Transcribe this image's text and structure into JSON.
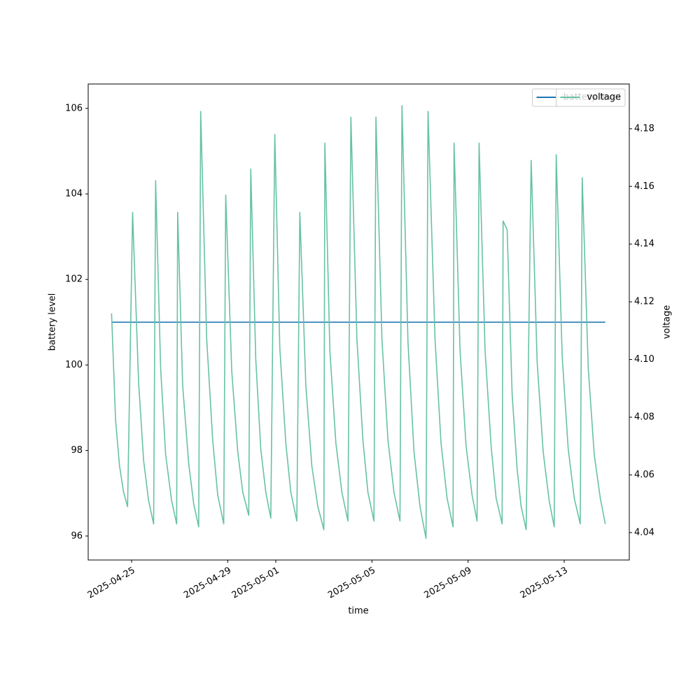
{
  "chart_data": {
    "type": "line",
    "x_label": "time",
    "y_label": "battery level",
    "y2_label": "voltage",
    "xlim": [
      "2025-04-23 04:40",
      "2025-05-15 17:00"
    ],
    "xticks": [
      "2025-04-25",
      "2025-04-29",
      "2025-05-01",
      "2025-05-05",
      "2025-05-09",
      "2025-05-13"
    ],
    "ylim": [
      95.44,
      106.57
    ],
    "yticks": [
      96,
      98,
      100,
      102,
      104,
      106
    ],
    "y2lim": [
      4.0305,
      4.1955
    ],
    "y2ticks": [
      4.04,
      4.06,
      4.08,
      {
        "value": 4.1,
        "label": "4.10"
      },
      4.12,
      4.14,
      4.16,
      4.18
    ],
    "legend": "upper right",
    "series": [
      {
        "name": "battery level",
        "color": "#1f77b4",
        "axis": "y",
        "x": [
          "2025-04-24 04:00",
          "2025-05-14 17:00"
        ],
        "values": [
          101,
          101
        ]
      },
      {
        "name": "voltage",
        "color": "#66c2a5",
        "axis": "y2",
        "x": [
          "2025-04-24 04:00",
          "2025-04-24 08:00",
          "2025-04-24 12:00",
          "2025-04-24 16:00",
          "2025-04-24 20:00",
          "2025-04-25 01:00",
          "2025-04-25 07:00",
          "2025-04-25 12:00",
          "2025-04-25 17:00",
          "2025-04-25 22:00",
          "2025-04-26 00:00",
          "2025-04-26 05:00",
          "2025-04-26 10:00",
          "2025-04-26 16:00",
          "2025-04-26 21:00",
          "2025-04-26 22:00",
          "2025-04-27 03:00",
          "2025-04-27 09:00",
          "2025-04-27 14:00",
          "2025-04-27 19:00",
          "2025-04-27 21:00",
          "2025-04-28 03:00",
          "2025-04-28 09:00",
          "2025-04-28 14:00",
          "2025-04-28 20:00",
          "2025-04-28 22:00",
          "2025-04-29 04:00",
          "2025-04-29 10:00",
          "2025-04-29 15:00",
          "2025-04-29 21:00",
          "2025-04-29 23:00",
          "2025-04-30 04:00",
          "2025-04-30 09:00",
          "2025-04-30 14:00",
          "2025-04-30 19:00",
          "2025-04-30 23:00",
          "2025-05-01 04:00",
          "2025-05-01 10:00",
          "2025-05-01 15:00",
          "2025-05-01 21:00",
          "2025-05-02 00:00",
          "2025-05-02 06:00",
          "2025-05-02 12:00",
          "2025-05-02 18:00",
          "2025-05-03 00:00",
          "2025-05-03 01:00",
          "2025-05-03 06:00",
          "2025-05-03 12:00",
          "2025-05-03 18:00",
          "2025-05-04 00:00",
          "2025-05-04 03:00",
          "2025-05-04 09:00",
          "2025-05-04 15:00",
          "2025-05-04 20:00",
          "2025-05-05 02:00",
          "2025-05-05 04:00",
          "2025-05-05 10:00",
          "2025-05-05 16:00",
          "2025-05-05 22:00",
          "2025-05-06 04:00",
          "2025-05-06 06:00",
          "2025-05-06 12:00",
          "2025-05-06 18:00",
          "2025-05-07 00:00",
          "2025-05-07 06:00",
          "2025-05-07 08:00",
          "2025-05-07 15:00",
          "2025-05-07 21:00",
          "2025-05-08 03:00",
          "2025-05-08 09:00",
          "2025-05-08 10:00",
          "2025-05-08 16:00",
          "2025-05-08 22:00",
          "2025-05-09 04:00",
          "2025-05-09 09:00",
          "2025-05-09 11:00",
          "2025-05-09 17:00",
          "2025-05-09 23:00",
          "2025-05-10 04:00",
          "2025-05-10 10:00",
          "2025-05-10 11:00",
          "2025-05-10 15:00",
          "2025-05-10 20:00",
          "2025-05-11 01:00",
          "2025-05-11 05:00",
          "2025-05-11 10:00",
          "2025-05-11 15:00",
          "2025-05-11 21:00",
          "2025-05-12 03:00",
          "2025-05-12 09:00",
          "2025-05-12 14:00",
          "2025-05-12 16:00",
          "2025-05-12 22:00",
          "2025-05-13 04:00",
          "2025-05-13 10:00",
          "2025-05-13 16:00",
          "2025-05-13 18:00",
          "2025-05-14 00:00",
          "2025-05-14 06:00",
          "2025-05-14 12:00",
          "2025-05-14 17:00"
        ],
        "values": [
          4.116,
          4.079,
          4.063,
          4.054,
          4.049,
          4.151,
          4.092,
          4.065,
          4.051,
          4.043,
          4.162,
          4.097,
          4.067,
          4.051,
          4.043,
          4.151,
          4.091,
          4.064,
          4.05,
          4.042,
          4.186,
          4.107,
          4.072,
          4.053,
          4.043,
          4.157,
          4.096,
          4.068,
          4.054,
          4.046,
          4.166,
          4.1,
          4.069,
          4.054,
          4.045,
          4.178,
          4.104,
          4.071,
          4.054,
          4.044,
          4.151,
          4.091,
          4.063,
          4.049,
          4.041,
          4.175,
          4.103,
          4.071,
          4.054,
          4.044,
          4.184,
          4.107,
          4.072,
          4.054,
          4.044,
          4.184,
          4.107,
          4.072,
          4.054,
          4.044,
          4.188,
          4.106,
          4.068,
          4.049,
          4.038,
          4.186,
          4.107,
          4.071,
          4.052,
          4.042,
          4.175,
          4.103,
          4.07,
          4.053,
          4.044,
          4.175,
          4.103,
          4.07,
          4.052,
          4.043,
          4.148,
          4.145,
          4.088,
          4.062,
          4.049,
          4.041,
          4.169,
          4.099,
          4.068,
          4.051,
          4.042,
          4.171,
          4.101,
          4.069,
          4.052,
          4.043,
          4.163,
          4.097,
          4.067,
          4.052,
          4.043
        ]
      }
    ]
  }
}
